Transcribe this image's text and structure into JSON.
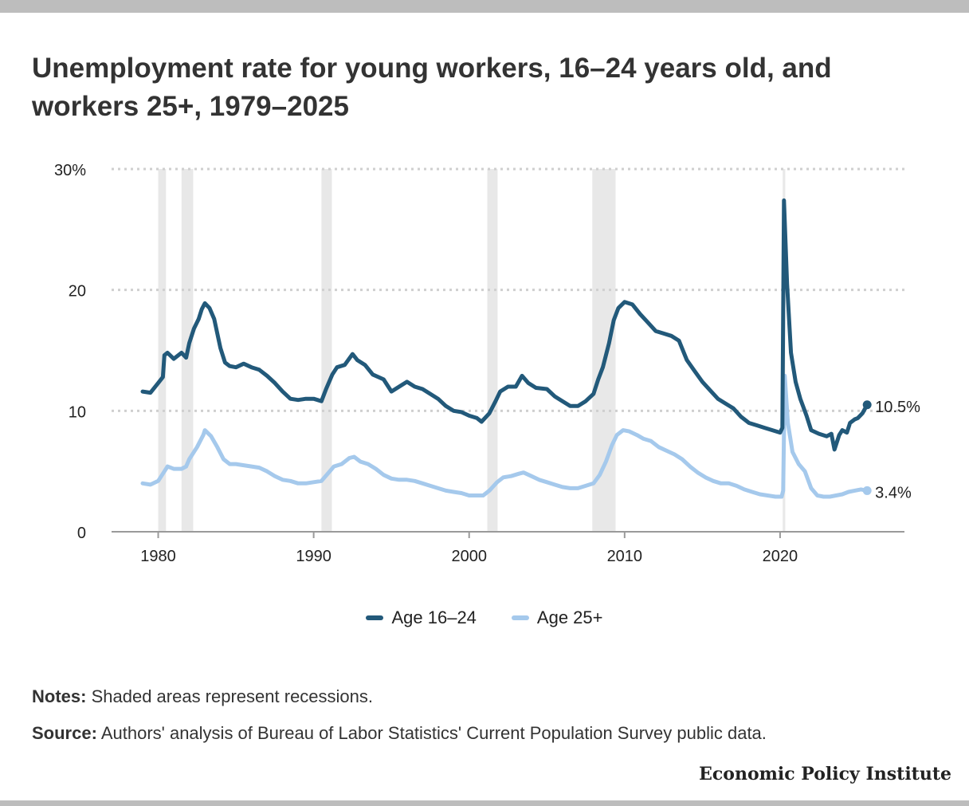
{
  "title": "Unemployment rate for young workers, 16–24 years old, and workers 25+, 1979–2025",
  "notes": {
    "label": "Notes:",
    "text": "Shaded areas represent recessions."
  },
  "source": {
    "label": "Source:",
    "text": "Authors' analysis of Bureau of Labor Statistics' Current Population Survey public data."
  },
  "brand": "Economic Policy Institute",
  "chart_data": {
    "type": "line",
    "xlim": [
      1977,
      2028
    ],
    "ylim": [
      0,
      30
    ],
    "x_ticks": [
      1980,
      1990,
      2000,
      2010,
      2020
    ],
    "y_ticks": [
      {
        "value": 0,
        "label": "0"
      },
      {
        "value": 10,
        "label": "10"
      },
      {
        "value": 20,
        "label": "20"
      },
      {
        "value": 30,
        "label": "30%"
      }
    ],
    "grid": "horizontal dotted",
    "legend_position": "bottom-center",
    "recessions": [
      [
        1980.0,
        1980.5
      ],
      [
        1981.5,
        1982.25
      ],
      [
        1990.5,
        1991.17
      ],
      [
        2001.17,
        2001.83
      ],
      [
        2007.92,
        2009.42
      ],
      [
        2020.17,
        2020.33
      ]
    ],
    "series": [
      {
        "name": "Age 16–24",
        "color": "#22597a",
        "end_label": "10.5%",
        "points": [
          [
            1979.0,
            11.6
          ],
          [
            1979.5,
            11.5
          ],
          [
            1980.0,
            12.3
          ],
          [
            1980.3,
            12.8
          ],
          [
            1980.4,
            14.6
          ],
          [
            1980.6,
            14.8
          ],
          [
            1981.0,
            14.3
          ],
          [
            1981.5,
            14.8
          ],
          [
            1981.8,
            14.4
          ],
          [
            1982.0,
            15.6
          ],
          [
            1982.3,
            16.8
          ],
          [
            1982.6,
            17.6
          ],
          [
            1982.8,
            18.4
          ],
          [
            1983.0,
            18.9
          ],
          [
            1983.3,
            18.5
          ],
          [
            1983.6,
            17.6
          ],
          [
            1984.0,
            15.2
          ],
          [
            1984.3,
            14.0
          ],
          [
            1984.6,
            13.7
          ],
          [
            1985.0,
            13.6
          ],
          [
            1985.5,
            13.9
          ],
          [
            1986.0,
            13.6
          ],
          [
            1986.5,
            13.4
          ],
          [
            1987.0,
            12.9
          ],
          [
            1987.5,
            12.3
          ],
          [
            1988.0,
            11.6
          ],
          [
            1988.5,
            11.0
          ],
          [
            1989.0,
            10.9
          ],
          [
            1989.5,
            11.0
          ],
          [
            1990.0,
            11.0
          ],
          [
            1990.5,
            10.8
          ],
          [
            1990.8,
            11.8
          ],
          [
            1991.2,
            13.0
          ],
          [
            1991.5,
            13.6
          ],
          [
            1992.0,
            13.8
          ],
          [
            1992.5,
            14.7
          ],
          [
            1992.8,
            14.2
          ],
          [
            1993.3,
            13.8
          ],
          [
            1993.8,
            13.0
          ],
          [
            1994.5,
            12.6
          ],
          [
            1995.0,
            11.6
          ],
          [
            1995.5,
            12.0
          ],
          [
            1996.0,
            12.4
          ],
          [
            1996.5,
            12.0
          ],
          [
            1997.0,
            11.8
          ],
          [
            1997.5,
            11.4
          ],
          [
            1998.0,
            11.0
          ],
          [
            1998.5,
            10.4
          ],
          [
            1999.0,
            10.0
          ],
          [
            1999.5,
            9.9
          ],
          [
            2000.0,
            9.6
          ],
          [
            2000.5,
            9.4
          ],
          [
            2000.8,
            9.1
          ],
          [
            2001.3,
            9.8
          ],
          [
            2001.7,
            10.8
          ],
          [
            2002.0,
            11.6
          ],
          [
            2002.5,
            12.0
          ],
          [
            2003.0,
            12.0
          ],
          [
            2003.4,
            12.9
          ],
          [
            2003.8,
            12.3
          ],
          [
            2004.3,
            11.9
          ],
          [
            2005.0,
            11.8
          ],
          [
            2005.5,
            11.2
          ],
          [
            2006.0,
            10.8
          ],
          [
            2006.5,
            10.4
          ],
          [
            2007.0,
            10.4
          ],
          [
            2007.5,
            10.8
          ],
          [
            2008.0,
            11.4
          ],
          [
            2008.3,
            12.6
          ],
          [
            2008.6,
            13.6
          ],
          [
            2009.0,
            15.6
          ],
          [
            2009.3,
            17.5
          ],
          [
            2009.6,
            18.5
          ],
          [
            2010.0,
            19.0
          ],
          [
            2010.5,
            18.8
          ],
          [
            2011.0,
            18.0
          ],
          [
            2011.5,
            17.3
          ],
          [
            2012.0,
            16.6
          ],
          [
            2012.5,
            16.4
          ],
          [
            2013.0,
            16.2
          ],
          [
            2013.5,
            15.8
          ],
          [
            2014.0,
            14.2
          ],
          [
            2014.5,
            13.3
          ],
          [
            2015.0,
            12.4
          ],
          [
            2015.5,
            11.7
          ],
          [
            2016.0,
            11.0
          ],
          [
            2016.5,
            10.6
          ],
          [
            2017.0,
            10.2
          ],
          [
            2017.5,
            9.5
          ],
          [
            2018.0,
            9.0
          ],
          [
            2018.5,
            8.8
          ],
          [
            2019.0,
            8.6
          ],
          [
            2019.5,
            8.4
          ],
          [
            2020.0,
            8.2
          ],
          [
            2020.15,
            8.6
          ],
          [
            2020.25,
            27.4
          ],
          [
            2020.45,
            20.5
          ],
          [
            2020.7,
            14.8
          ],
          [
            2021.0,
            12.4
          ],
          [
            2021.3,
            11.0
          ],
          [
            2021.7,
            9.6
          ],
          [
            2022.0,
            8.4
          ],
          [
            2022.5,
            8.1
          ],
          [
            2023.0,
            7.9
          ],
          [
            2023.3,
            8.1
          ],
          [
            2023.5,
            6.8
          ],
          [
            2023.8,
            8.0
          ],
          [
            2024.0,
            8.4
          ],
          [
            2024.3,
            8.2
          ],
          [
            2024.5,
            9.0
          ],
          [
            2024.8,
            9.3
          ],
          [
            2025.0,
            9.4
          ],
          [
            2025.3,
            9.8
          ],
          [
            2025.6,
            10.5
          ]
        ]
      },
      {
        "name": "Age 25+",
        "color": "#a5c9ec",
        "end_label": "3.4%",
        "points": [
          [
            1979.0,
            4.0
          ],
          [
            1979.5,
            3.9
          ],
          [
            1980.0,
            4.2
          ],
          [
            1980.3,
            4.8
          ],
          [
            1980.6,
            5.4
          ],
          [
            1981.0,
            5.2
          ],
          [
            1981.5,
            5.2
          ],
          [
            1981.8,
            5.4
          ],
          [
            1982.0,
            6.0
          ],
          [
            1982.5,
            7.0
          ],
          [
            1982.9,
            8.0
          ],
          [
            1983.0,
            8.4
          ],
          [
            1983.4,
            7.9
          ],
          [
            1983.8,
            7.0
          ],
          [
            1984.2,
            6.0
          ],
          [
            1984.6,
            5.6
          ],
          [
            1985.0,
            5.6
          ],
          [
            1985.5,
            5.5
          ],
          [
            1986.0,
            5.4
          ],
          [
            1986.5,
            5.3
          ],
          [
            1987.0,
            5.0
          ],
          [
            1987.5,
            4.6
          ],
          [
            1988.0,
            4.3
          ],
          [
            1988.5,
            4.2
          ],
          [
            1989.0,
            4.0
          ],
          [
            1989.5,
            4.0
          ],
          [
            1990.0,
            4.1
          ],
          [
            1990.5,
            4.2
          ],
          [
            1990.9,
            4.8
          ],
          [
            1991.3,
            5.4
          ],
          [
            1991.8,
            5.6
          ],
          [
            1992.3,
            6.1
          ],
          [
            1992.6,
            6.2
          ],
          [
            1993.0,
            5.8
          ],
          [
            1993.5,
            5.6
          ],
          [
            1994.0,
            5.2
          ],
          [
            1994.5,
            4.7
          ],
          [
            1995.0,
            4.4
          ],
          [
            1995.5,
            4.3
          ],
          [
            1996.0,
            4.3
          ],
          [
            1996.5,
            4.2
          ],
          [
            1997.0,
            4.0
          ],
          [
            1997.5,
            3.8
          ],
          [
            1998.0,
            3.6
          ],
          [
            1998.5,
            3.4
          ],
          [
            1999.0,
            3.3
          ],
          [
            1999.5,
            3.2
          ],
          [
            2000.0,
            3.0
          ],
          [
            2000.5,
            3.0
          ],
          [
            2000.9,
            3.0
          ],
          [
            2001.3,
            3.4
          ],
          [
            2001.8,
            4.1
          ],
          [
            2002.2,
            4.5
          ],
          [
            2002.7,
            4.6
          ],
          [
            2003.2,
            4.8
          ],
          [
            2003.5,
            4.9
          ],
          [
            2004.0,
            4.6
          ],
          [
            2004.5,
            4.3
          ],
          [
            2005.0,
            4.1
          ],
          [
            2005.5,
            3.9
          ],
          [
            2006.0,
            3.7
          ],
          [
            2006.5,
            3.6
          ],
          [
            2007.0,
            3.6
          ],
          [
            2007.5,
            3.8
          ],
          [
            2008.0,
            4.0
          ],
          [
            2008.4,
            4.7
          ],
          [
            2008.8,
            5.8
          ],
          [
            2009.2,
            7.2
          ],
          [
            2009.5,
            8.0
          ],
          [
            2009.9,
            8.4
          ],
          [
            2010.3,
            8.3
          ],
          [
            2010.8,
            8.0
          ],
          [
            2011.2,
            7.7
          ],
          [
            2011.7,
            7.5
          ],
          [
            2012.2,
            7.0
          ],
          [
            2012.7,
            6.7
          ],
          [
            2013.2,
            6.4
          ],
          [
            2013.7,
            6.0
          ],
          [
            2014.2,
            5.4
          ],
          [
            2014.7,
            4.9
          ],
          [
            2015.2,
            4.5
          ],
          [
            2015.7,
            4.2
          ],
          [
            2016.2,
            4.0
          ],
          [
            2016.7,
            4.0
          ],
          [
            2017.2,
            3.8
          ],
          [
            2017.7,
            3.5
          ],
          [
            2018.2,
            3.3
          ],
          [
            2018.7,
            3.1
          ],
          [
            2019.2,
            3.0
          ],
          [
            2019.7,
            2.9
          ],
          [
            2020.1,
            2.9
          ],
          [
            2020.2,
            3.4
          ],
          [
            2020.3,
            12.9
          ],
          [
            2020.5,
            9.0
          ],
          [
            2020.8,
            6.6
          ],
          [
            2021.2,
            5.6
          ],
          [
            2021.6,
            5.0
          ],
          [
            2022.0,
            3.6
          ],
          [
            2022.4,
            3.0
          ],
          [
            2022.8,
            2.9
          ],
          [
            2023.2,
            2.9
          ],
          [
            2023.6,
            3.0
          ],
          [
            2024.0,
            3.1
          ],
          [
            2024.4,
            3.3
          ],
          [
            2024.8,
            3.4
          ],
          [
            2025.2,
            3.5
          ],
          [
            2025.6,
            3.4
          ]
        ]
      }
    ]
  }
}
